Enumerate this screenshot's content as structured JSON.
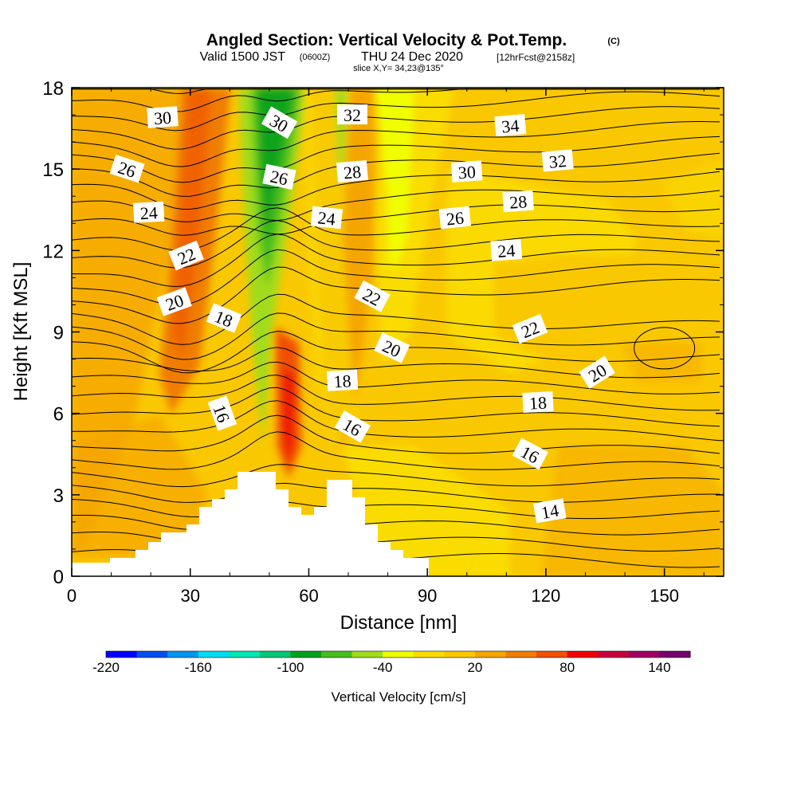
{
  "figure": {
    "title": "Angled Section: Vertical Velocity & Pot.Temp.",
    "copyright": "(C)",
    "valid_prefix": "Valid 1500 JST",
    "valid_utc": "(0600Z)",
    "valid_date": "THU 24 Dec 2020",
    "forecast": "[12hrFcst@2158z]",
    "slice": "slice X,Y= 34,23@135°"
  },
  "chart_data": {
    "type": "heatmap",
    "xlabel": "Distance [nm]",
    "ylabel": "Height [Kft MSL]",
    "xlim": [
      0,
      165
    ],
    "ylim": [
      0,
      18
    ],
    "xticks": [
      "0",
      "30",
      "60",
      "90",
      "120",
      "150"
    ],
    "yticks": [
      "0",
      "3",
      "6",
      "9",
      "12",
      "15",
      "18"
    ],
    "grid": false,
    "filled_field": "Vertical Velocity [cm/s]",
    "contour_field": "Potential Temperature (°C)",
    "colorbar": {
      "label": "Vertical Velocity [cm/s]",
      "tick_labels": [
        "-220",
        "-160",
        "-100",
        "-40",
        "20",
        "80",
        "140"
      ],
      "colors": [
        "#0000ff",
        "#0050f0",
        "#0096f0",
        "#00dcf0",
        "#00e6b4",
        "#00c878",
        "#00a01e",
        "#46be1e",
        "#a0dc1e",
        "#f0ff00",
        "#fadc00",
        "#fac800",
        "#f5a500",
        "#f07d00",
        "#f05000",
        "#f00000",
        "#c8003c",
        "#a00064",
        "#78006e"
      ]
    },
    "theta_contour_labels": [
      {
        "text": "30",
        "x": 23,
        "y": 16.9,
        "angle": -4
      },
      {
        "text": "30",
        "x": 52.5,
        "y": 16.7,
        "angle": 30
      },
      {
        "text": "32",
        "x": 71,
        "y": 17.0,
        "angle": 0
      },
      {
        "text": "34",
        "x": 111,
        "y": 16.6,
        "angle": -5
      },
      {
        "text": "26",
        "x": 14,
        "y": 15.0,
        "angle": 18
      },
      {
        "text": "26",
        "x": 52.5,
        "y": 14.7,
        "angle": 12
      },
      {
        "text": "28",
        "x": 71,
        "y": 14.9,
        "angle": -5
      },
      {
        "text": "30",
        "x": 100,
        "y": 14.9,
        "angle": -4
      },
      {
        "text": "32",
        "x": 123,
        "y": 15.3,
        "angle": -5
      },
      {
        "text": "24",
        "x": 19.5,
        "y": 13.4,
        "angle": -3
      },
      {
        "text": "24",
        "x": 64.5,
        "y": 13.2,
        "angle": 6
      },
      {
        "text": "26",
        "x": 97,
        "y": 13.2,
        "angle": -6
      },
      {
        "text": "28",
        "x": 113,
        "y": 13.8,
        "angle": -4
      },
      {
        "text": "22",
        "x": 29,
        "y": 11.8,
        "angle": -22
      },
      {
        "text": "24",
        "x": 110,
        "y": 12.0,
        "angle": -4
      },
      {
        "text": "20",
        "x": 26,
        "y": 10.1,
        "angle": -20
      },
      {
        "text": "22",
        "x": 76,
        "y": 10.3,
        "angle": 28
      },
      {
        "text": "18",
        "x": 38.5,
        "y": 9.5,
        "angle": 22
      },
      {
        "text": "22",
        "x": 116,
        "y": 9.1,
        "angle": -22
      },
      {
        "text": "20",
        "x": 81,
        "y": 8.4,
        "angle": 25
      },
      {
        "text": "20",
        "x": 133,
        "y": 7.5,
        "angle": -32
      },
      {
        "text": "18",
        "x": 68.5,
        "y": 7.2,
        "angle": -3
      },
      {
        "text": "18",
        "x": 118,
        "y": 6.4,
        "angle": -3
      },
      {
        "text": "16",
        "x": 38,
        "y": 6.0,
        "angle": 70
      },
      {
        "text": "16",
        "x": 71,
        "y": 5.5,
        "angle": 30
      },
      {
        "text": "16",
        "x": 116,
        "y": 4.5,
        "angle": 28
      },
      {
        "text": "14",
        "x": 121,
        "y": 2.4,
        "angle": -10
      }
    ]
  }
}
